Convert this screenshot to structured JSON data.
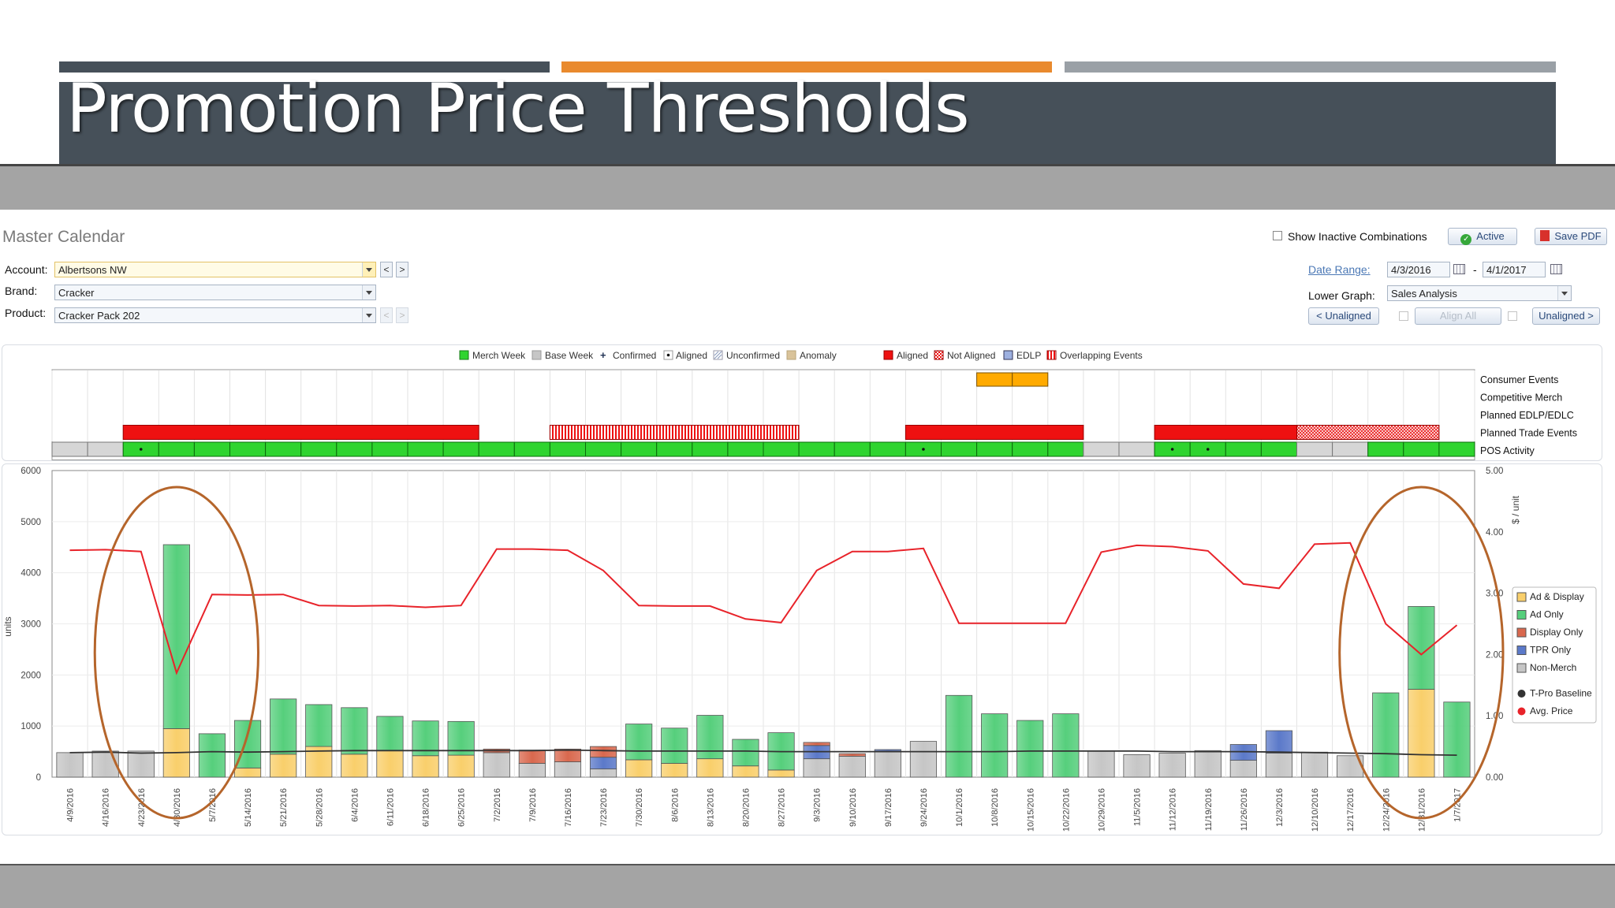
{
  "slide": {
    "title": "Promotion Price Thresholds"
  },
  "app": {
    "title": "Master Calendar",
    "show_inactive_label": "Show Inactive Combinations",
    "active_button": "Active",
    "save_pdf_button": "Save PDF",
    "account_label": "Account:",
    "account_value": "Albertsons NW",
    "brand_label": "Brand:",
    "brand_value": "Cracker",
    "product_label": "Product:",
    "product_value": "Cracker Pack 202",
    "prev_label": "<",
    "next_label": ">",
    "date_range_label": "Date Range:",
    "date_from": "4/3/2016",
    "date_sep": "-",
    "date_to": "4/1/2017",
    "lower_graph_label": "Lower Graph:",
    "lower_graph_value": "Sales Analysis",
    "unaligned_prev": "< Unaligned",
    "align_all": "Align All",
    "unaligned_next": "Unaligned >"
  },
  "colors": {
    "merch_green": "#2fd42f",
    "event_red": "#ee1111",
    "promo_orange": "#ffaa00",
    "ad_only_green": "#56cf7c",
    "ad_display_yellow": "#f9cf6b",
    "display_only": "#d9684e",
    "tpr_only": "#5b79c9",
    "non_merch": "#c6c6c6",
    "avg_price_line": "#e8232a",
    "baseline_line": "#333333",
    "highlight_circle": "#b5652b"
  },
  "calendar": {
    "legend": [
      "Merch Week",
      "Base Week",
      "Confirmed",
      "Aligned",
      "Unconfirmed",
      "Anomaly",
      "Aligned",
      "Not Aligned",
      "EDLP",
      "Overlapping Events"
    ],
    "row_labels": [
      "Consumer Events",
      "Competitive Merch",
      "Planned EDLP/EDLC",
      "Planned Trade Events",
      "POS Activity"
    ],
    "consumer_events": [
      {
        "start": 26,
        "end": 27
      }
    ],
    "planned_trade_events": [
      {
        "start": 2,
        "end": 11,
        "status": "aligned"
      },
      {
        "start": 14,
        "end": 20,
        "status": "unconfirmed"
      },
      {
        "start": 24,
        "end": 28,
        "status": "aligned"
      },
      {
        "start": 31,
        "end": 34,
        "status": "aligned"
      },
      {
        "start": 35,
        "end": 38,
        "status": "not-aligned"
      }
    ],
    "pos_activity": [
      "base",
      "base",
      "merch",
      "merch",
      "merch",
      "merch",
      "merch",
      "merch",
      "merch",
      "merch",
      "merch",
      "merch",
      "merch",
      "merch",
      "merch",
      "merch",
      "merch",
      "merch",
      "merch",
      "merch",
      "merch",
      "merch",
      "merch",
      "merch",
      "merch",
      "merch",
      "merch",
      "merch",
      "merch",
      "base",
      "base",
      "merch",
      "merch",
      "merch",
      "merch",
      "base",
      "base",
      "merch",
      "merch",
      "merch"
    ],
    "aligned_dots": [
      2,
      24,
      31,
      32
    ]
  },
  "chart_data": {
    "type": "bar",
    "stacked": true,
    "categories": [
      "4/9/2016",
      "4/16/2016",
      "4/23/2016",
      "4/30/2016",
      "5/7/2016",
      "5/14/2016",
      "5/21/2016",
      "5/28/2016",
      "6/4/2016",
      "6/11/2016",
      "6/18/2016",
      "6/25/2016",
      "7/2/2016",
      "7/9/2016",
      "7/16/2016",
      "7/23/2016",
      "7/30/2016",
      "8/6/2016",
      "8/13/2016",
      "8/20/2016",
      "8/27/2016",
      "9/3/2016",
      "9/10/2016",
      "9/17/2016",
      "9/24/2016",
      "10/1/2016",
      "10/8/2016",
      "10/15/2016",
      "10/22/2016",
      "10/29/2016",
      "11/5/2016",
      "11/12/2016",
      "11/19/2016",
      "11/26/2016",
      "12/3/2016",
      "12/10/2016",
      "12/17/2016",
      "12/24/2016",
      "12/31/2016",
      "1/7/2017"
    ],
    "series": [
      {
        "name": "Ad & Display",
        "color": "#f9cf6b",
        "values": [
          0,
          0,
          0,
          950,
          0,
          180,
          450,
          600,
          450,
          520,
          420,
          430,
          0,
          0,
          0,
          0,
          340,
          270,
          360,
          220,
          140,
          0,
          0,
          0,
          0,
          0,
          0,
          0,
          0,
          0,
          0,
          0,
          0,
          0,
          0,
          0,
          0,
          0,
          1720,
          0
        ]
      },
      {
        "name": "Ad Only",
        "color": "#56cf7c",
        "values": [
          0,
          0,
          0,
          3600,
          850,
          930,
          1080,
          820,
          910,
          670,
          680,
          660,
          0,
          0,
          0,
          0,
          700,
          690,
          850,
          520,
          730,
          0,
          0,
          0,
          0,
          1600,
          1240,
          1110,
          1240,
          0,
          0,
          0,
          0,
          0,
          0,
          0,
          0,
          1650,
          1620,
          1470
        ]
      },
      {
        "name": "Display Only",
        "color": "#d9684e",
        "values": [
          0,
          0,
          0,
          0,
          0,
          0,
          0,
          0,
          0,
          0,
          0,
          0,
          70,
          260,
          250,
          210,
          0,
          0,
          0,
          0,
          0,
          60,
          50,
          0,
          0,
          0,
          0,
          0,
          0,
          0,
          0,
          0,
          0,
          0,
          0,
          0,
          0,
          0,
          0,
          0
        ]
      },
      {
        "name": "TPR Only",
        "color": "#5b79c9",
        "values": [
          0,
          0,
          0,
          0,
          0,
          0,
          0,
          0,
          0,
          0,
          0,
          0,
          0,
          0,
          0,
          230,
          0,
          0,
          0,
          0,
          0,
          260,
          0,
          30,
          0,
          0,
          0,
          0,
          0,
          0,
          0,
          0,
          0,
          310,
          440,
          0,
          0,
          0,
          0,
          0
        ]
      },
      {
        "name": "Non-Merch",
        "color": "#c6c6c6",
        "values": [
          480,
          510,
          510,
          0,
          0,
          0,
          0,
          0,
          0,
          0,
          0,
          0,
          480,
          270,
          300,
          160,
          0,
          0,
          0,
          0,
          0,
          360,
          410,
          510,
          700,
          0,
          0,
          0,
          0,
          510,
          440,
          470,
          520,
          330,
          470,
          490,
          420,
          0,
          0,
          0
        ]
      }
    ],
    "lines": [
      {
        "name": "T-Pro Baseline",
        "color": "#333333",
        "axis": "left",
        "values": [
          480,
          490,
          470,
          480,
          500,
          490,
          500,
          510,
          520,
          520,
          520,
          520,
          520,
          520,
          530,
          520,
          510,
          510,
          510,
          510,
          500,
          500,
          500,
          500,
          500,
          500,
          500,
          510,
          510,
          510,
          510,
          500,
          500,
          500,
          490,
          480,
          470,
          460,
          440,
          430
        ]
      },
      {
        "name": "Avg. Price",
        "color": "#e8232a",
        "axis": "right",
        "values": [
          3.7,
          3.71,
          3.68,
          1.7,
          2.98,
          2.97,
          2.98,
          2.8,
          2.79,
          2.8,
          2.77,
          2.8,
          3.72,
          3.72,
          3.7,
          3.37,
          2.8,
          2.79,
          2.79,
          2.58,
          2.52,
          3.37,
          3.68,
          3.68,
          3.73,
          2.51,
          2.51,
          2.51,
          2.51,
          3.67,
          3.78,
          3.76,
          3.69,
          3.15,
          3.08,
          3.8,
          3.82,
          2.5,
          2.0,
          2.48
        ]
      }
    ],
    "ylabel": "units",
    "y2label": "$ / unit",
    "ylim": [
      0,
      6000
    ],
    "y2lim": [
      0,
      5
    ],
    "yticks": [
      "0",
      "1000",
      "2000",
      "3000",
      "4000",
      "5000",
      "6000"
    ],
    "y2ticks": [
      "0.00",
      "1.00",
      "2.00",
      "3.00",
      "4.00",
      "5.00"
    ],
    "grid": true,
    "legend_position": "right",
    "legend": [
      "Ad & Display",
      "Ad Only",
      "Display Only",
      "TPR Only",
      "Non-Merch",
      "T-Pro Baseline",
      "Avg. Price"
    ],
    "highlights": [
      {
        "from": 2,
        "to": 4
      },
      {
        "from": 37,
        "to": 39
      }
    ]
  }
}
